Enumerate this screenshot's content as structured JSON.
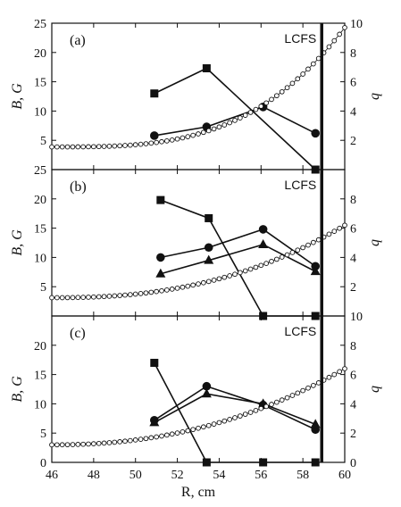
{
  "chart_data": {
    "type": "line",
    "xlabel": "R, cm",
    "x_ticks": [
      46,
      48,
      50,
      52,
      54,
      56,
      58,
      60
    ],
    "xlim": [
      46,
      60
    ],
    "lcfs_label": "LCFS",
    "lcfs_x": 58.9,
    "panels": [
      {
        "label": "(a)",
        "ylabel": "B, G",
        "y2label": "q",
        "ylim": [
          0,
          25
        ],
        "y2lim": [
          0,
          10
        ],
        "y_ticks": [
          5,
          10,
          15,
          20,
          25
        ],
        "y2_ticks": [
          2,
          4,
          6,
          8,
          10
        ],
        "series": [
          {
            "marker": "square",
            "axis": "left",
            "x": [
              50.9,
              53.4,
              58.6
            ],
            "y": [
              13.0,
              17.3,
              0.0
            ]
          },
          {
            "marker": "circle",
            "axis": "left",
            "x": [
              50.9,
              53.4,
              56.1,
              58.6
            ],
            "y": [
              5.8,
              7.3,
              10.7,
              6.2
            ]
          },
          {
            "marker": "open-circle",
            "axis": "right",
            "q_start": 1.55,
            "q_end": 9.7,
            "q_exponent": 3.2
          }
        ]
      },
      {
        "label": "(b)",
        "ylabel": "B, G",
        "y2label": "q",
        "ylim": [
          0,
          25
        ],
        "y2lim": [
          0,
          10
        ],
        "y_ticks": [
          5,
          10,
          15,
          20,
          25
        ],
        "y2_ticks": [
          2,
          4,
          6,
          8
        ],
        "series": [
          {
            "marker": "square",
            "axis": "left",
            "x": [
              51.2,
              53.5,
              56.1,
              58.6
            ],
            "y": [
              19.8,
              16.7,
              0.0,
              0.0
            ]
          },
          {
            "marker": "circle",
            "axis": "left",
            "x": [
              51.2,
              53.5,
              56.1,
              58.6
            ],
            "y": [
              10.0,
              11.7,
              14.8,
              8.5
            ]
          },
          {
            "marker": "triangle",
            "axis": "left",
            "x": [
              51.2,
              53.5,
              56.1,
              58.6
            ],
            "y": [
              7.2,
              9.5,
              12.2,
              7.6
            ]
          },
          {
            "marker": "open-circle",
            "axis": "right",
            "q_start": 1.25,
            "q_end": 6.2,
            "q_exponent": 2.4
          }
        ]
      },
      {
        "label": "(c)",
        "ylabel": "B, G",
        "y2label": "q",
        "ylim": [
          0,
          25
        ],
        "y2lim": [
          0,
          10
        ],
        "y_ticks": [
          0,
          5,
          10,
          15,
          20
        ],
        "y2_ticks": [
          0,
          2,
          4,
          6,
          8,
          10
        ],
        "series": [
          {
            "marker": "square",
            "axis": "left",
            "x": [
              50.9,
              53.4,
              56.1,
              58.6
            ],
            "y": [
              17.0,
              0.0,
              0.0,
              0.0
            ]
          },
          {
            "marker": "circle",
            "axis": "left",
            "x": [
              50.9,
              53.4,
              56.1,
              58.6
            ],
            "y": [
              7.2,
              13.0,
              9.8,
              5.6
            ]
          },
          {
            "marker": "triangle",
            "axis": "left",
            "x": [
              50.9,
              53.4,
              56.1,
              58.6
            ],
            "y": [
              6.8,
              11.7,
              10.0,
              6.5
            ]
          },
          {
            "marker": "open-circle",
            "axis": "right",
            "q_start": 1.2,
            "q_end": 6.4,
            "q_exponent": 2.2
          }
        ]
      }
    ]
  }
}
